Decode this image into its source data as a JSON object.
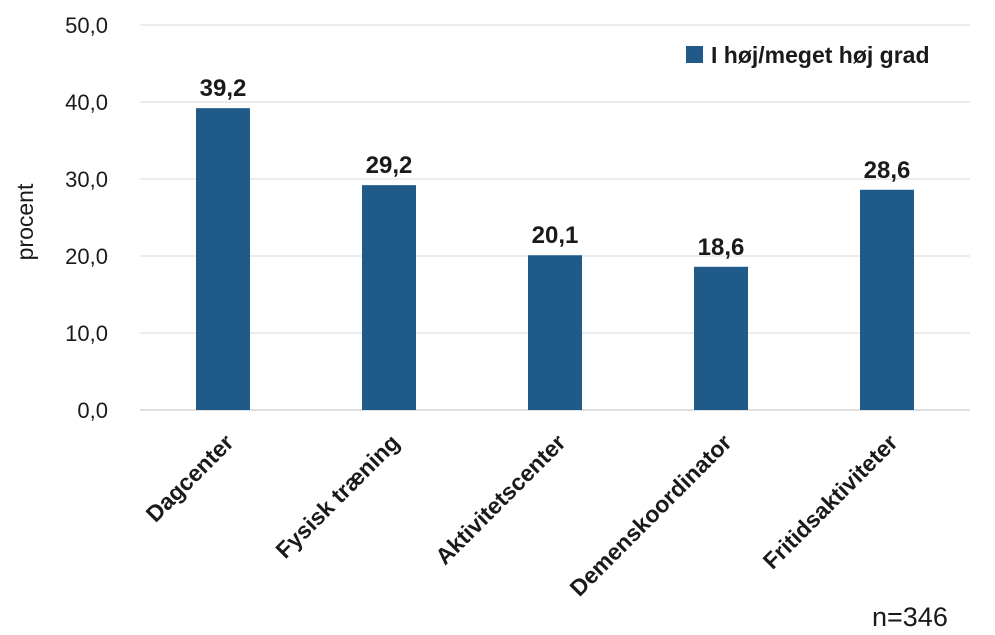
{
  "chart_data": {
    "type": "bar",
    "ylabel": "procent",
    "ylim": [
      0,
      50
    ],
    "yticks": [
      "0,0",
      "10,0",
      "20,0",
      "30,0",
      "40,0",
      "50,0"
    ],
    "grid": true,
    "legend_position": "top-right",
    "categories": [
      "Dagcenter",
      "Fysisk træning",
      "Aktivitetscenter",
      "Demenskoordinator",
      "Fritidsaktiviteter"
    ],
    "series": [
      {
        "name": "I høj/meget høj grad",
        "values": [
          39.2,
          29.2,
          20.1,
          18.6,
          28.6
        ],
        "labels": [
          "39,2",
          "29,2",
          "20,1",
          "18,6",
          "28,6"
        ],
        "color": "#1f5a89"
      }
    ],
    "note": "n=346"
  }
}
